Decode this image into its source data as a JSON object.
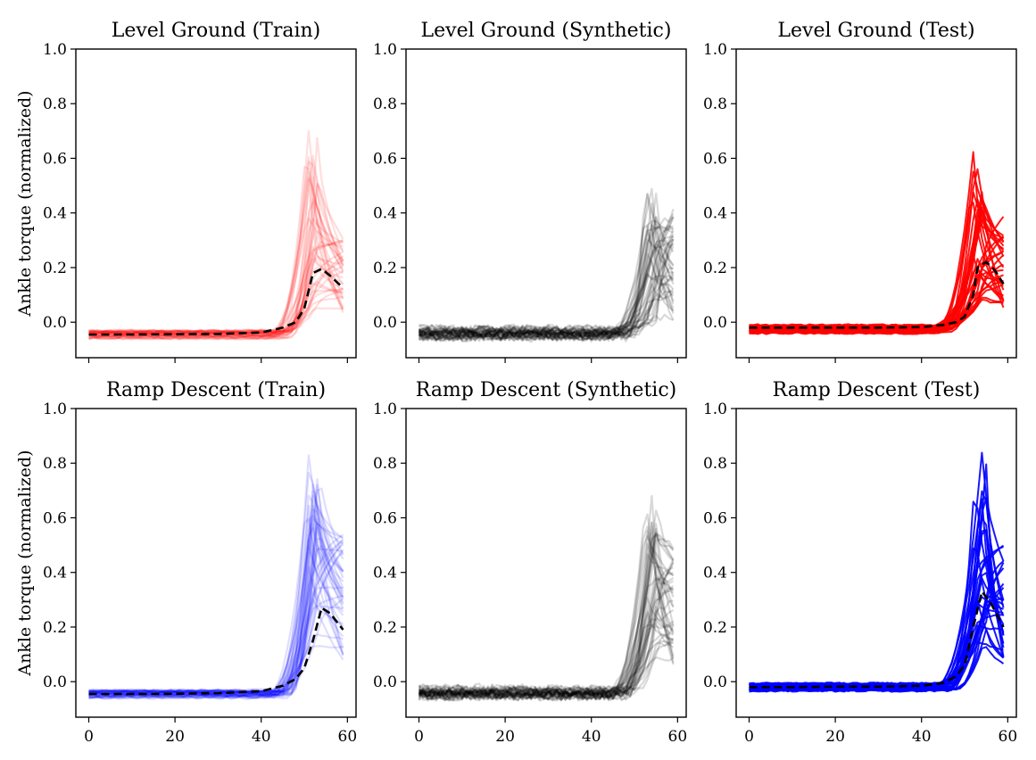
{
  "chart_data": {
    "type": "line",
    "x_range": [
      0,
      59
    ],
    "ylim": [
      -0.13,
      1.0
    ],
    "xlim": [
      -3,
      62
    ],
    "yticks": [
      "0.0",
      "0.2",
      "0.4",
      "0.6",
      "0.8",
      "1.0"
    ],
    "xticks": [
      "0",
      "20",
      "40",
      "60"
    ],
    "ylabel": "Ankle torque (normalized)",
    "panels": [
      {
        "title": "Level Ground (Train)",
        "color": "#ff0000",
        "trace_opacity": 0.13,
        "n_traces": 40,
        "seed": 11,
        "baseline": -0.045,
        "onset": 44,
        "peak_x": 52,
        "peak_low": 0.05,
        "peak_high": 0.72,
        "end_low": 0.03,
        "end_high": 0.31,
        "noise": 0.004,
        "mean_dashed": true,
        "mean": {
          "x": [
            0,
            10,
            20,
            30,
            40,
            45,
            48,
            50,
            52,
            54,
            56,
            59
          ],
          "y": [
            -0.045,
            -0.045,
            -0.044,
            -0.043,
            -0.038,
            -0.02,
            0.0,
            0.05,
            0.18,
            0.195,
            0.17,
            0.125
          ]
        }
      },
      {
        "title": "Level Ground (Synthetic)",
        "color": "#000000",
        "trace_opacity": 0.15,
        "n_traces": 45,
        "seed": 23,
        "baseline": -0.04,
        "onset": 46,
        "peak_x": 54,
        "peak_low": 0.0,
        "peak_high": 0.54,
        "end_low": 0.0,
        "end_high": 0.42,
        "noise": 0.018,
        "mean_dashed": false
      },
      {
        "title": "Level Ground (Test)",
        "color": "#ff0000",
        "trace_opacity": 0.9,
        "n_traces": 30,
        "seed": 37,
        "baseline": -0.025,
        "onset": 44,
        "peak_x": 53,
        "peak_low": 0.05,
        "peak_high": 0.65,
        "end_low": 0.04,
        "end_high": 0.39,
        "noise": 0.004,
        "mean_dashed": true,
        "mean": {
          "x": [
            0,
            10,
            20,
            30,
            40,
            45,
            48,
            50,
            52,
            53,
            55,
            57,
            59
          ],
          "y": [
            -0.02,
            -0.02,
            -0.02,
            -0.02,
            -0.018,
            -0.01,
            0.0,
            0.02,
            0.1,
            0.2,
            0.22,
            0.19,
            0.14
          ]
        }
      },
      {
        "title": "Ramp Descent (Train)",
        "color": "#0000ff",
        "trace_opacity": 0.13,
        "n_traces": 45,
        "seed": 51,
        "baseline": -0.045,
        "onset": 44,
        "peak_x": 52,
        "peak_low": 0.1,
        "peak_high": 0.87,
        "end_low": 0.08,
        "end_high": 0.55,
        "noise": 0.004,
        "mean_dashed": true,
        "mean": {
          "x": [
            0,
            10,
            20,
            30,
            40,
            45,
            48,
            50,
            52,
            54,
            56,
            59
          ],
          "y": [
            -0.045,
            -0.045,
            -0.044,
            -0.042,
            -0.035,
            -0.015,
            0.01,
            0.05,
            0.15,
            0.27,
            0.25,
            0.19
          ]
        }
      },
      {
        "title": "Ramp Descent (Synthetic)",
        "color": "#000000",
        "trace_opacity": 0.15,
        "n_traces": 45,
        "seed": 67,
        "baseline": -0.04,
        "onset": 46,
        "peak_x": 54,
        "peak_low": 0.1,
        "peak_high": 0.74,
        "end_low": 0.05,
        "end_high": 0.5,
        "noise": 0.018,
        "mean_dashed": false
      },
      {
        "title": "Ramp Descent (Test)",
        "color": "#0000ff",
        "trace_opacity": 0.9,
        "n_traces": 30,
        "seed": 79,
        "baseline": -0.02,
        "onset": 45,
        "peak_x": 54,
        "peak_low": 0.15,
        "peak_high": 0.92,
        "end_low": 0.05,
        "end_high": 0.5,
        "noise": 0.004,
        "mean_dashed": true,
        "mean": {
          "x": [
            0,
            10,
            20,
            30,
            40,
            45,
            48,
            50,
            52,
            54,
            56,
            59
          ],
          "y": [
            -0.02,
            -0.02,
            -0.018,
            -0.018,
            -0.015,
            -0.005,
            0.02,
            0.06,
            0.2,
            0.33,
            0.29,
            0.2
          ]
        }
      }
    ]
  }
}
